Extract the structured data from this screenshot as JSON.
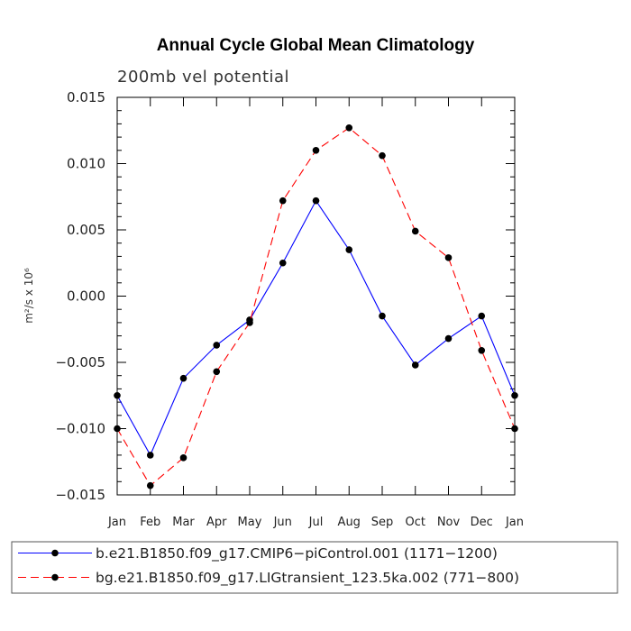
{
  "chart_data": {
    "type": "line",
    "title": "Annual Cycle Global Mean Climatology",
    "subtitle": "200mb vel potential",
    "ylabel": "m²/s x 10⁶",
    "xlabel": "",
    "categories": [
      "Jan",
      "Feb",
      "Mar",
      "Apr",
      "May",
      "Jun",
      "Jul",
      "Aug",
      "Sep",
      "Oct",
      "Nov",
      "Dec",
      "Jan"
    ],
    "ylim": [
      -0.015,
      0.015
    ],
    "yticks": [
      0.015,
      0.01,
      0.005,
      0.0,
      -0.005,
      -0.01,
      -0.015
    ],
    "ytick_labels": [
      "0.015",
      "0.010",
      "0.005",
      "0.000",
      "−0.005",
      "−0.010",
      "−0.015"
    ],
    "grid": false,
    "legend_position": "bottom",
    "series": [
      {
        "name": "b.e21.B1850.f09_g17.CMIP6−piControl.001 (1171−1200)",
        "color": "#0000ff",
        "dash": "solid",
        "values": [
          -0.0075,
          -0.012,
          -0.0062,
          -0.0037,
          -0.0018,
          0.0025,
          0.0072,
          0.0035,
          -0.0015,
          -0.0052,
          -0.0032,
          -0.0015,
          -0.0075
        ]
      },
      {
        "name": "bg.e21.B1850.f09_g17.LIGtransient_123.5ka.002 (771−800)",
        "color": "#ff0000",
        "dash": "dashed",
        "values": [
          -0.01,
          -0.0143,
          -0.0122,
          -0.0057,
          -0.002,
          0.0072,
          0.011,
          0.0127,
          0.0106,
          0.0049,
          0.0029,
          -0.0041,
          -0.01
        ]
      }
    ]
  }
}
